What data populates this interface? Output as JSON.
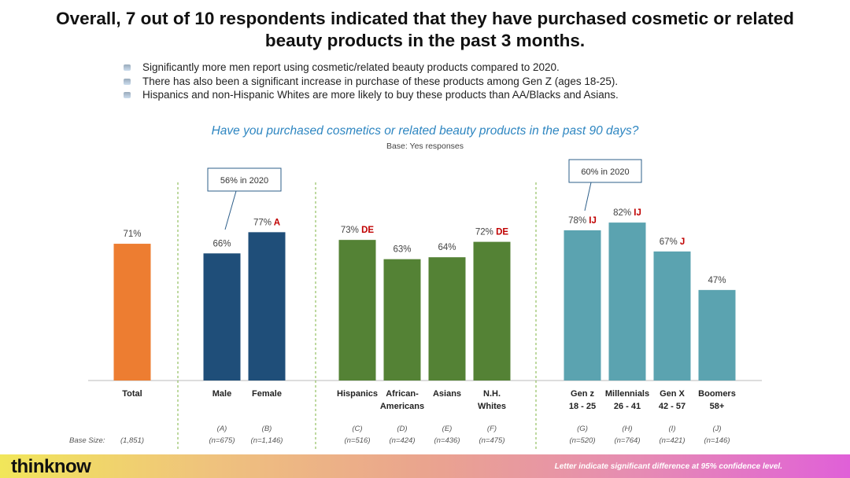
{
  "title": "Overall, 7 out of 10 respondents indicated that they have purchased cosmetic or related beauty products in the past 3 months.",
  "bullets": [
    "Significantly more men report using cosmetic/related beauty products compared to 2020.",
    "There has also been a significant increase in purchase of these products among Gen Z (ages 18-25).",
    "Hispanics and non-Hispanic Whites are more likely to buy these products than AA/Blacks and Asians."
  ],
  "question": "Have you purchased cosmetics or related beauty products in the past 90 days?",
  "base_note": "Base: Yes responses",
  "footer": {
    "logo": "thinknow",
    "note": "Letter indicate significant difference at 95% confidence level."
  },
  "chart_data": {
    "type": "bar",
    "title": "Have you purchased cosmetics or related beauty products in the past 90 days?",
    "ylim": [
      0,
      100
    ],
    "unit": "%",
    "base_size_label": "Base Size:",
    "colors": {
      "total": "#ED7D31",
      "gender": "#1F4E79",
      "ethnicity": "#548235",
      "generation": "#5BA3B0",
      "sig": "#C00000"
    },
    "categories": [
      {
        "label": [
          "Total"
        ],
        "group": "total",
        "value": 71,
        "sig": "",
        "letter": "",
        "n": "(1,851)"
      },
      {
        "label": [
          "Male"
        ],
        "group": "gender",
        "value": 66,
        "sig": "",
        "letter": "(A)",
        "n": "(n=675)"
      },
      {
        "label": [
          "Female"
        ],
        "group": "gender",
        "value": 77,
        "sig": "A",
        "letter": "(B)",
        "n": "(n=1,146)"
      },
      {
        "label": [
          "Hispanics"
        ],
        "group": "ethnicity",
        "value": 73,
        "sig": "DE",
        "letter": "(C)",
        "n": "(n=516)"
      },
      {
        "label": [
          "African-",
          "Americans"
        ],
        "group": "ethnicity",
        "value": 63,
        "sig": "",
        "letter": "(D)",
        "n": "(n=424)"
      },
      {
        "label": [
          "Asians"
        ],
        "group": "ethnicity",
        "value": 64,
        "sig": "",
        "letter": "(E)",
        "n": "(n=436)"
      },
      {
        "label": [
          "N.H.",
          "Whites"
        ],
        "group": "ethnicity",
        "value": 72,
        "sig": "DE",
        "letter": "(F)",
        "n": "(n=475)"
      },
      {
        "label": [
          "Gen z",
          "18 - 25"
        ],
        "group": "generation",
        "value": 78,
        "sig": "IJ",
        "letter": "(G)",
        "n": "(n=520)"
      },
      {
        "label": [
          "Millennials",
          "26 - 41"
        ],
        "group": "generation",
        "value": 82,
        "sig": "IJ",
        "letter": "(H)",
        "n": "(n=764)"
      },
      {
        "label": [
          "Gen X",
          "42 - 57"
        ],
        "group": "generation",
        "value": 67,
        "sig": "J",
        "letter": "(I)",
        "n": "(n=421)"
      },
      {
        "label": [
          "Boomers",
          "58+"
        ],
        "group": "generation",
        "value": 47,
        "sig": "",
        "letter": "(J)",
        "n": "(n=146)"
      }
    ],
    "annotations": [
      {
        "text": "56% in 2020",
        "target": "Male"
      },
      {
        "text": "60% in 2020",
        "target": "Gen z"
      }
    ]
  }
}
